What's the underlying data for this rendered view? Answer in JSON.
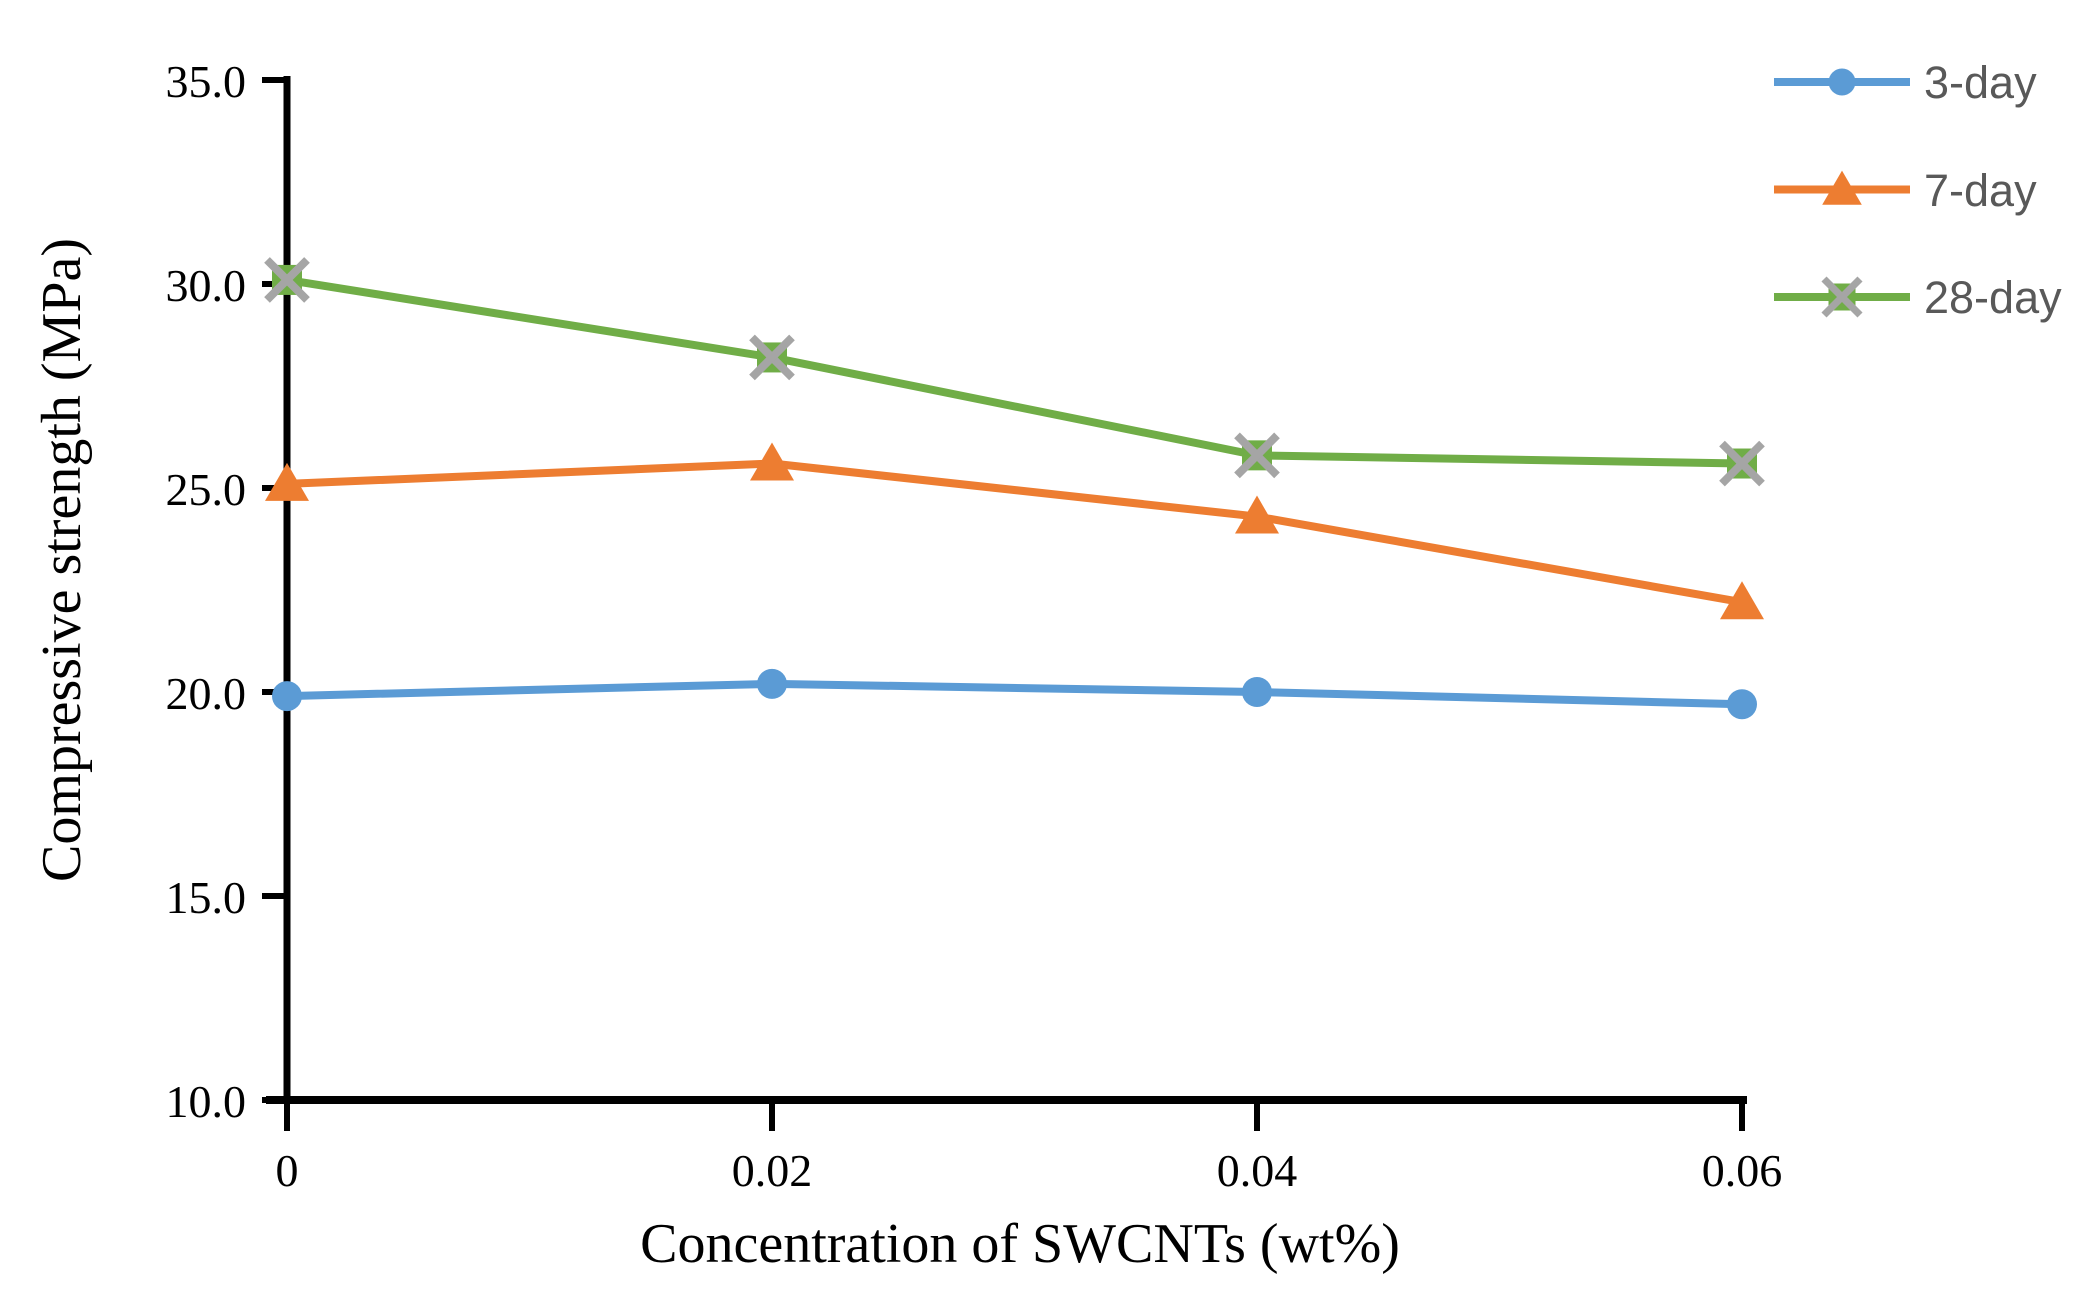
{
  "chart_data": {
    "type": "line",
    "title": "",
    "xlabel": "Concentration of SWCNTs (wt%)",
    "ylabel": "Compressive strength (MPa)",
    "categories": [
      "0",
      "0.02",
      "0.04",
      "0.06"
    ],
    "x_values": [
      0,
      0.02,
      0.04,
      0.06
    ],
    "y_tick_labels": [
      "35.0",
      "30.0",
      "25.0",
      "20.0",
      "15.0",
      "10.0"
    ],
    "ylim": [
      10,
      35
    ],
    "ytick_step": 5,
    "grid": false,
    "legend_position": "top-right",
    "background_color": "#FFFFFF",
    "axis_color": "#000000",
    "tick_label_color": "#000000",
    "legend_text_color": "#595959",
    "series": [
      {
        "name": "3-day",
        "marker": "circle",
        "color": "#5B9BD5",
        "marker_color": "#5B9BD5",
        "values": [
          19.9,
          20.2,
          20.0,
          19.7
        ]
      },
      {
        "name": "7-day",
        "marker": "triangle",
        "color": "#ED7D31",
        "marker_color": "#ED7D31",
        "values": [
          25.1,
          25.6,
          24.3,
          22.2
        ]
      },
      {
        "name": "28-day",
        "marker": "x-square",
        "color": "#70AD47",
        "marker_color": "#A5A5A5",
        "values": [
          30.1,
          28.2,
          25.8,
          25.6
        ]
      }
    ]
  }
}
